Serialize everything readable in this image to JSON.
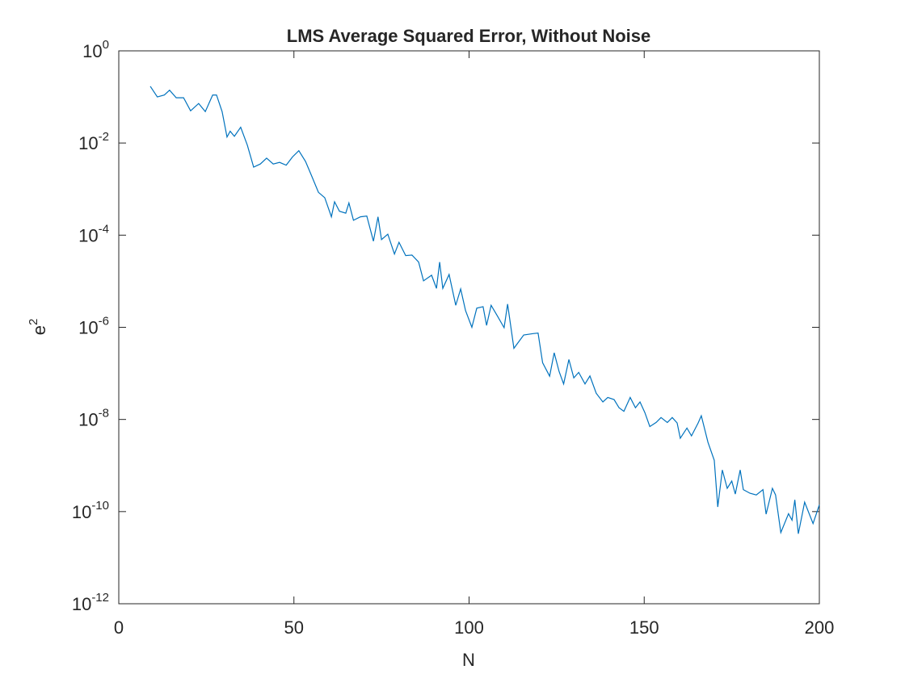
{
  "chart_data": {
    "type": "line",
    "title": "LMS Average Squared Error, Without Noise",
    "xlabel": "N",
    "ylabel": {
      "base": "e",
      "exponent": "2"
    },
    "log_y": true,
    "xlim": [
      0,
      200
    ],
    "xticks": [
      0,
      50,
      100,
      150,
      200
    ],
    "ylim": [
      1e-12,
      1
    ],
    "yticks": [
      {
        "value": 1e-12,
        "base": "10",
        "exponent": "-12"
      },
      {
        "value": 1e-10,
        "base": "10",
        "exponent": "-10"
      },
      {
        "value": 1e-08,
        "base": "10",
        "exponent": "-8"
      },
      {
        "value": 1e-06,
        "base": "10",
        "exponent": "-6"
      },
      {
        "value": 0.0001,
        "base": "10",
        "exponent": "-4"
      },
      {
        "value": 0.01,
        "base": "10",
        "exponent": "-2"
      },
      {
        "value": 1,
        "base": "10",
        "exponent": "0"
      }
    ],
    "series": [
      {
        "name": "e2",
        "color": "#0072bd",
        "x": [
          9,
          11,
          13,
          14.5,
          16.4,
          18.5,
          20.5,
          22.8,
          24.7,
          26.8,
          27.9,
          29.5,
          30.9,
          31.8,
          33,
          34.8,
          36.7,
          38.5,
          40.4,
          42.2,
          44.1,
          45.9,
          47.8,
          49.6,
          51.4,
          53.3,
          55.1,
          57,
          58.8,
          60.7,
          61.6,
          63,
          64.8,
          65.7,
          67,
          69,
          70.8,
          72.7,
          74,
          75,
          76.8,
          78.7,
          80,
          81.9,
          83.7,
          85.6,
          87,
          89.3,
          90.7,
          91.6,
          92.5,
          94.3,
          96.2,
          97.6,
          99,
          100.8,
          102.2,
          104,
          105,
          106.3,
          108.2,
          110,
          111,
          112.8,
          115.6,
          118.3,
          119.7,
          121,
          123,
          124.3,
          125.7,
          127,
          128.5,
          129.9,
          131.3,
          133.1,
          134.5,
          136.3,
          138.2,
          139.6,
          141.4,
          142.8,
          144.2,
          146,
          147.5,
          148.8,
          150.2,
          151.6,
          153.4,
          154.8,
          156.6,
          158,
          159.4,
          160.3,
          162.2,
          163.5,
          165.4,
          166.3,
          168.2,
          170,
          171,
          172.3,
          173.7,
          175,
          176,
          177.4,
          178.3,
          180.2,
          182,
          183.9,
          184.8,
          186.6,
          187.5,
          189,
          191.2,
          192.2,
          193,
          194,
          195.8,
          198.2,
          200
        ],
        "values": [
          0.17,
          0.1,
          0.11,
          0.14,
          0.096,
          0.096,
          0.05,
          0.072,
          0.048,
          0.11,
          0.11,
          0.048,
          0.0135,
          0.018,
          0.014,
          0.022,
          0.009,
          0.003,
          0.0035,
          0.0047,
          0.0035,
          0.0038,
          0.0033,
          0.005,
          0.0068,
          0.004,
          0.0019,
          0.00085,
          0.00065,
          0.00025,
          0.00053,
          0.00033,
          0.0003,
          0.0005,
          0.00021,
          0.00025,
          0.00026,
          7.4e-05,
          0.00025,
          8e-05,
          0.000105,
          3.9e-05,
          7e-05,
          3.6e-05,
          3.7e-05,
          2.6e-05,
          1.02e-05,
          1.35e-05,
          7e-06,
          2.6e-05,
          7e-06,
          1.4e-05,
          3e-06,
          6.8e-06,
          2.3e-06,
          1e-06,
          2.6e-06,
          2.8e-06,
          1.1e-06,
          3e-06,
          1.7e-06,
          9.8e-07,
          3.2e-06,
          3.5e-07,
          6.8e-07,
          7.3e-07,
          7.5e-07,
          1.7e-07,
          8.7e-08,
          2.8e-07,
          1.1e-07,
          5.9e-08,
          2e-07,
          8e-08,
          1.05e-07,
          5.9e-08,
          8.8e-08,
          3.7e-08,
          2.4e-08,
          3e-08,
          2.7e-08,
          1.8e-08,
          1.5e-08,
          3e-08,
          1.8e-08,
          2.4e-08,
          1.4e-08,
          7e-09,
          8.6e-09,
          1.1e-08,
          8.6e-09,
          1.1e-08,
          8.4e-09,
          3.9e-09,
          6.5e-09,
          4.4e-09,
          8.4e-09,
          1.2e-08,
          3.2e-09,
          1.3e-09,
          1.26e-10,
          8e-10,
          3.2e-10,
          4.6e-10,
          2.4e-10,
          8e-10,
          3e-10,
          2.5e-10,
          2.3e-10,
          3e-10,
          8.8e-11,
          3.2e-10,
          2.3e-10,
          3.5e-11,
          9e-11,
          6.5e-11,
          1.8e-10,
          3.3e-11,
          1.6e-10,
          5.5e-11,
          1.4e-10
        ]
      }
    ]
  }
}
